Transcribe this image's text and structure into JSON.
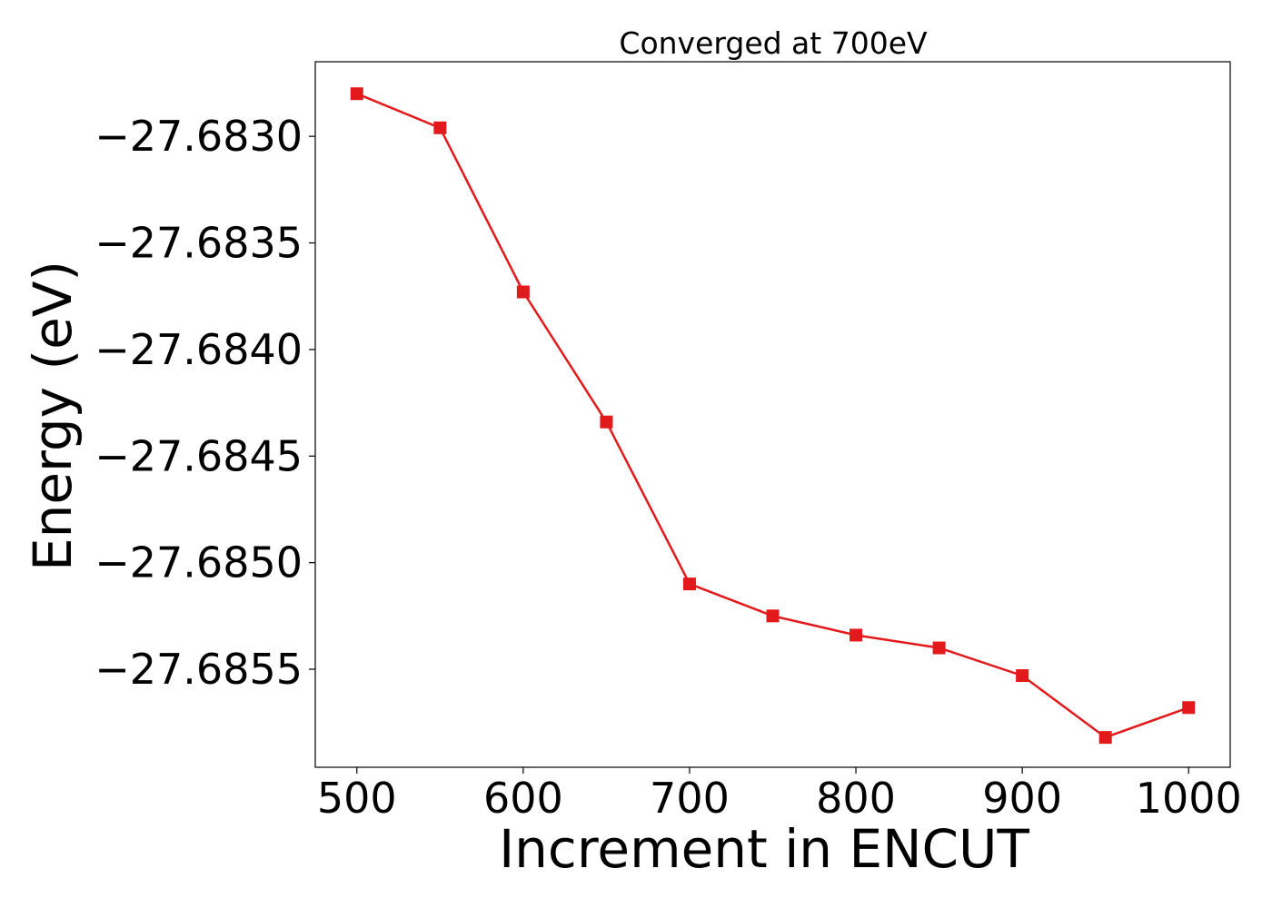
{
  "chart_data": {
    "type": "line",
    "title": "Converged at 700eV",
    "xlabel": "Increment in ENCUT",
    "ylabel": "Energy (eV)",
    "xlim": [
      475,
      1025
    ],
    "ylim": [
      -27.68596,
      -27.68265
    ],
    "xticks": [
      500,
      600,
      700,
      800,
      900,
      1000
    ],
    "xtick_labels": [
      "500",
      "600",
      "700",
      "800",
      "900",
      "1000"
    ],
    "yticks": [
      -27.683,
      -27.6835,
      -27.684,
      -27.6845,
      -27.685,
      -27.6855
    ],
    "ytick_labels": [
      "−27.6830",
      "−27.6835",
      "−27.6840",
      "−27.6845",
      "−27.6850",
      "−27.6855"
    ],
    "grid": false,
    "marker": "square",
    "color": "#e31a1c",
    "series": [
      {
        "x": [
          500,
          550,
          600,
          650,
          700,
          750,
          800,
          850,
          900,
          950,
          1000
        ],
        "y": [
          -27.6828,
          -27.68296,
          -27.68373,
          -27.68434,
          -27.6851,
          -27.68525,
          -27.68534,
          -27.6854,
          -27.68553,
          -27.68582,
          -27.68568
        ]
      }
    ]
  }
}
